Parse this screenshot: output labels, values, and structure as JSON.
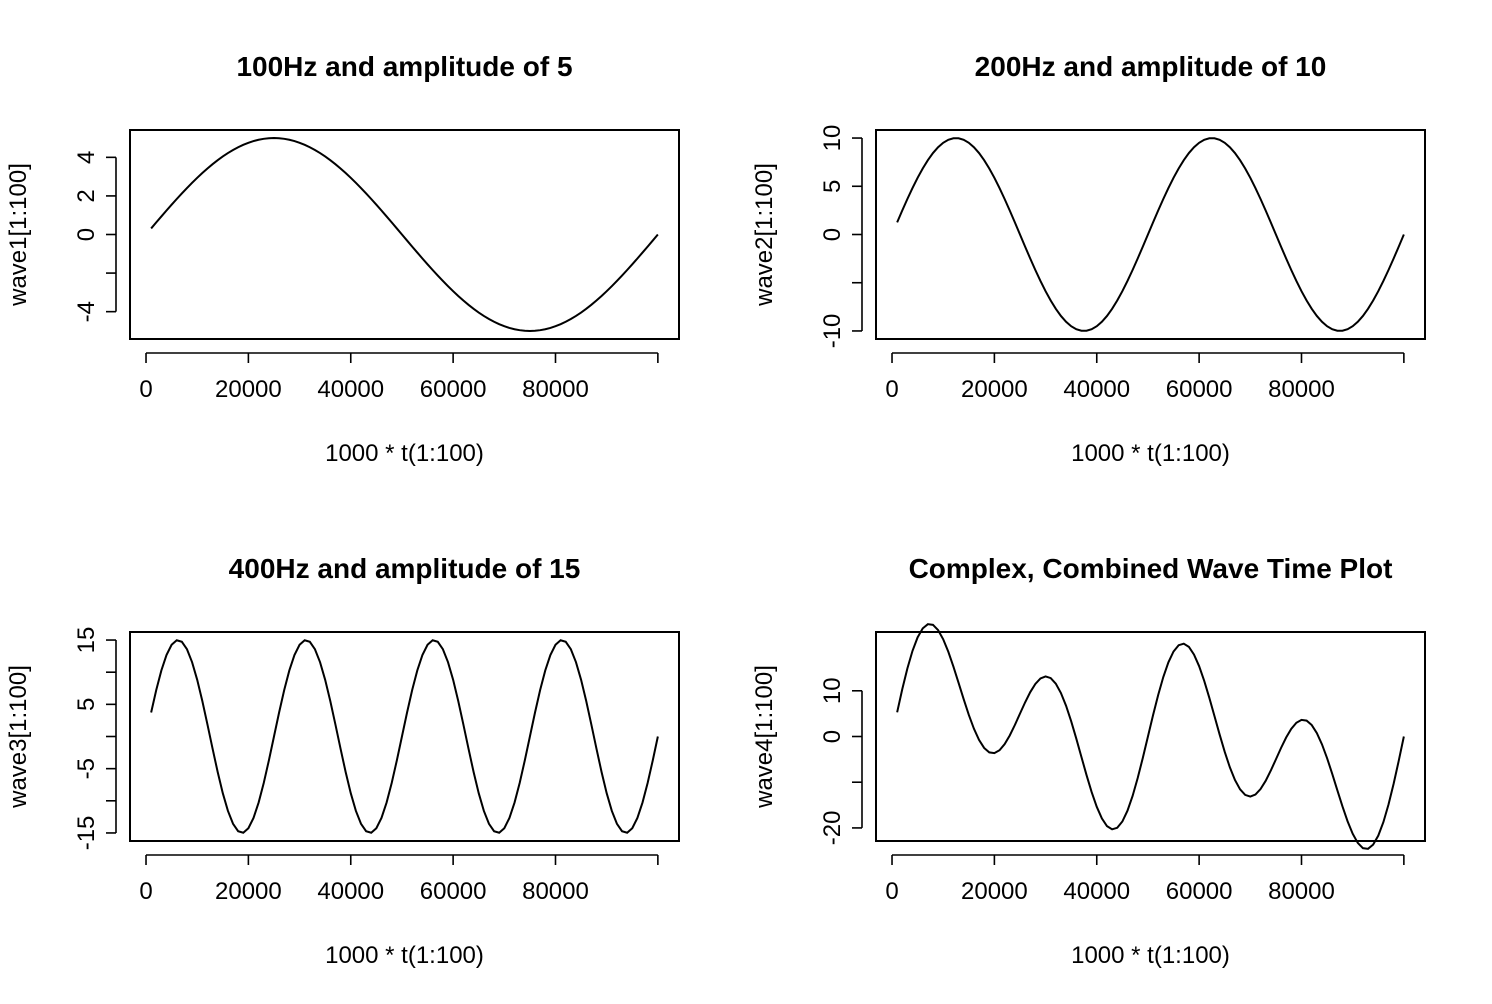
{
  "chart_data": [
    {
      "type": "line",
      "title": "100Hz and amplitude of 5",
      "xlabel": "1000 * t(1:100)",
      "ylabel": "wave1[1:100]",
      "frequency_hz": 100,
      "amplitude": 5,
      "x": {
        "start": 1000,
        "step": 1000,
        "count": 100
      },
      "xlim": [
        1000,
        100000
      ],
      "ylim": [
        -5,
        5
      ],
      "x_ticks": [
        0,
        20000,
        40000,
        60000,
        80000
      ],
      "y_ticks": [
        -4,
        -2,
        0,
        2,
        4
      ],
      "y_tick_labels": [
        "-4",
        "",
        "0",
        "2",
        "4"
      ],
      "line_color": "#000000"
    },
    {
      "type": "line",
      "title": "200Hz and amplitude of 10",
      "xlabel": "1000 * t(1:100)",
      "ylabel": "wave2[1:100]",
      "frequency_hz": 200,
      "amplitude": 10,
      "x": {
        "start": 1000,
        "step": 1000,
        "count": 100
      },
      "xlim": [
        1000,
        100000
      ],
      "ylim": [
        -10,
        10
      ],
      "x_ticks": [
        0,
        20000,
        40000,
        60000,
        80000
      ],
      "y_ticks": [
        -10,
        -5,
        0,
        5,
        10
      ],
      "y_tick_labels": [
        "-10",
        "",
        "0",
        "5",
        "10"
      ],
      "line_color": "#000000"
    },
    {
      "type": "line",
      "title": "400Hz and amplitude of 15",
      "xlabel": "1000 * t(1:100)",
      "ylabel": "wave3[1:100]",
      "frequency_hz": 400,
      "amplitude": 15,
      "x": {
        "start": 1000,
        "step": 1000,
        "count": 100
      },
      "xlim": [
        1000,
        100000
      ],
      "ylim": [
        -15,
        15
      ],
      "x_ticks": [
        0,
        20000,
        40000,
        60000,
        80000
      ],
      "y_ticks": [
        -15,
        -10,
        -5,
        0,
        5,
        10,
        15
      ],
      "y_tick_labels": [
        "-15",
        "",
        "-5",
        "",
        "5",
        "",
        "15"
      ],
      "line_color": "#000000"
    },
    {
      "type": "line",
      "title": "Complex, Combined Wave Time Plot",
      "xlabel": "1000 * t(1:100)",
      "ylabel": "wave4[1:100]",
      "components": [
        "wave1",
        "wave2",
        "wave3"
      ],
      "x": {
        "start": 1000,
        "step": 1000,
        "count": 100
      },
      "xlim": [
        1000,
        100000
      ],
      "ylim": [
        -21.1,
        21.1
      ],
      "x_ticks": [
        0,
        20000,
        40000,
        60000,
        80000
      ],
      "y_ticks": [
        -20,
        -10,
        0,
        10
      ],
      "y_tick_labels": [
        "-20",
        "",
        "0",
        "10"
      ],
      "line_color": "#000000"
    }
  ]
}
